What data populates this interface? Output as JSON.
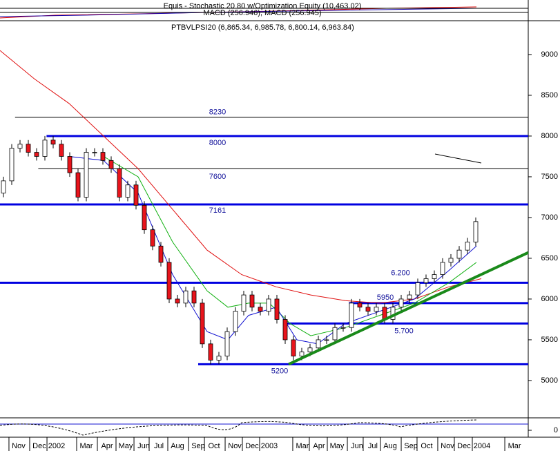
{
  "chart_data": {
    "type": "candlestick",
    "header": "Equis - Stochastic 20 80 w/Optimization Equity (10,463.02)",
    "subheader": "MACD (256.946), MACD (256.945)",
    "title": "PTBVLPSI20 (6,865.34, 6,985.78, 6,800.14, 6,963.84)",
    "up_color": "#ffffff",
    "down_color": "#e8141c",
    "open": [
      7300,
      7450,
      7850,
      7900,
      7800,
      7750,
      7950,
      7900,
      7750,
      7550,
      7250,
      7800,
      7800,
      7700,
      7600,
      7250,
      7400,
      7150,
      6850,
      6650,
      6450,
      6000,
      5950,
      6100,
      5950,
      5450,
      5250,
      5300,
      5600,
      5850,
      6050,
      5900,
      5850,
      6000,
      5750,
      5500,
      5300,
      5350,
      5400,
      5500,
      5500,
      5650,
      5650,
      5950,
      5900,
      5850,
      5900,
      5750,
      5900,
      6000,
      6050,
      6200,
      6250,
      6300,
      6450,
      6500,
      6600,
      6700
    ],
    "close": [
      7450,
      7850,
      7900,
      7800,
      7750,
      7950,
      7900,
      7750,
      7550,
      7250,
      7800,
      7800,
      7700,
      7600,
      7250,
      7400,
      7150,
      6850,
      6650,
      6450,
      6000,
      5950,
      6100,
      5950,
      5450,
      5250,
      5300,
      5600,
      5850,
      6050,
      5900,
      5850,
      6000,
      5750,
      5500,
      5300,
      5350,
      5400,
      5500,
      5500,
      5650,
      5650,
      5950,
      5900,
      5850,
      5900,
      5750,
      5900,
      6000,
      6050,
      6200,
      6250,
      6300,
      6450,
      6500,
      6600,
      6700,
      6950
    ],
    "averages": [
      {
        "color": "#e01010",
        "x": [
          -0.42,
          3.75,
          7.92,
          12.08,
          16.25,
          20.42,
          24.58,
          28.75,
          32.92,
          37.08,
          41.25,
          45.42,
          49.58,
          53.75,
          57.67
        ],
        "values": [
          9050,
          8700,
          8400,
          8000,
          7600,
          7100,
          6600,
          6300,
          6150,
          6050,
          5980,
          5950,
          6000,
          6150,
          6250
        ]
      },
      {
        "color": "#10b010",
        "x": [
          12.08,
          16.25,
          20.42,
          24.58,
          27.08,
          29.58,
          32.08,
          34.58,
          37.08,
          41.25,
          45.42,
          49.58,
          53.75,
          57.08
        ],
        "values": [
          7750,
          7500,
          6700,
          6100,
          5900,
          5950,
          5950,
          5700,
          5550,
          5650,
          5800,
          5950,
          6200,
          6450
        ]
      },
      {
        "color": "#1010d0",
        "x": [
          7.92,
          12.08,
          16.25,
          20.42,
          24.58,
          27.08,
          29.58,
          32.92,
          35.42,
          37.92,
          41.25,
          45.42,
          49.58,
          53.75,
          57.08
        ],
        "values": [
          7750,
          7700,
          7300,
          6300,
          5600,
          5500,
          5800,
          5900,
          5500,
          5450,
          5700,
          5850,
          6000,
          6350,
          6650
        ]
      }
    ],
    "levels": [
      {
        "value": 8230,
        "label": "8230",
        "start": 1.4,
        "bold": false
      },
      {
        "value": 8000,
        "label": "8000",
        "start": 5.2,
        "bold": true
      },
      {
        "value": 7600,
        "label": "7600",
        "start": 4.2,
        "bold": false
      },
      {
        "value": 7161,
        "label": "7161",
        "start": -0.42,
        "bold": true
      },
      {
        "value": 6200,
        "label": "6.200",
        "start": -0.42,
        "bold": true
      },
      {
        "value": 5950,
        "label": "5950",
        "start": 41.7,
        "bold": true
      },
      {
        "value": 5700,
        "label": "5.700",
        "start": 33.8,
        "bold": true
      },
      {
        "value": 5200,
        "label": "5200",
        "start": 23.5,
        "bold": true
      }
    ],
    "trendline": {
      "x": [
        34.42,
        63.33
      ],
      "values": [
        5200,
        6570
      ],
      "color": "#1a8a1a"
    },
    "xlim": [
      -0.4167,
      63.3333
    ],
    "ylim": [
      4542,
      9415
    ],
    "yticks": [
      5000,
      5500,
      6000,
      6500,
      7000,
      7500,
      8000,
      8500,
      9000
    ],
    "osc_yticks": [
      0
    ],
    "xticks": [
      {
        "value": 1.83,
        "label": "Nov"
      },
      {
        "value": 4.33,
        "label": "Dec"
      },
      {
        "value": 6.42,
        "label": "2002"
      },
      {
        "value": 10,
        "label": "Mar"
      },
      {
        "value": 12.5,
        "label": "Apr"
      },
      {
        "value": 14.75,
        "label": "May"
      },
      {
        "value": 16.92,
        "label": "Jun"
      },
      {
        "value": 18.75,
        "label": "Jul"
      },
      {
        "value": 21,
        "label": "Aug"
      },
      {
        "value": 23.5,
        "label": "Sep"
      },
      {
        "value": 25.42,
        "label": "Oct"
      },
      {
        "value": 27.92,
        "label": "Nov"
      },
      {
        "value": 30,
        "label": "Dec"
      },
      {
        "value": 32.08,
        "label": "2003"
      },
      {
        "value": 36.08,
        "label": "Mar"
      },
      {
        "value": 38.08,
        "label": "Apr"
      },
      {
        "value": 40.25,
        "label": "May"
      },
      {
        "value": 42.67,
        "label": "Jun"
      },
      {
        "value": 44.58,
        "label": "Jul"
      },
      {
        "value": 46.67,
        "label": "Aug"
      },
      {
        "value": 49.17,
        "label": "Sep"
      },
      {
        "value": 51.08,
        "label": "Oct"
      },
      {
        "value": 53.58,
        "label": "Nov"
      },
      {
        "value": 55.58,
        "label": "Dec"
      },
      {
        "value": 57.75,
        "label": "2004"
      },
      {
        "value": 61.67,
        "label": "Mar"
      }
    ]
  }
}
